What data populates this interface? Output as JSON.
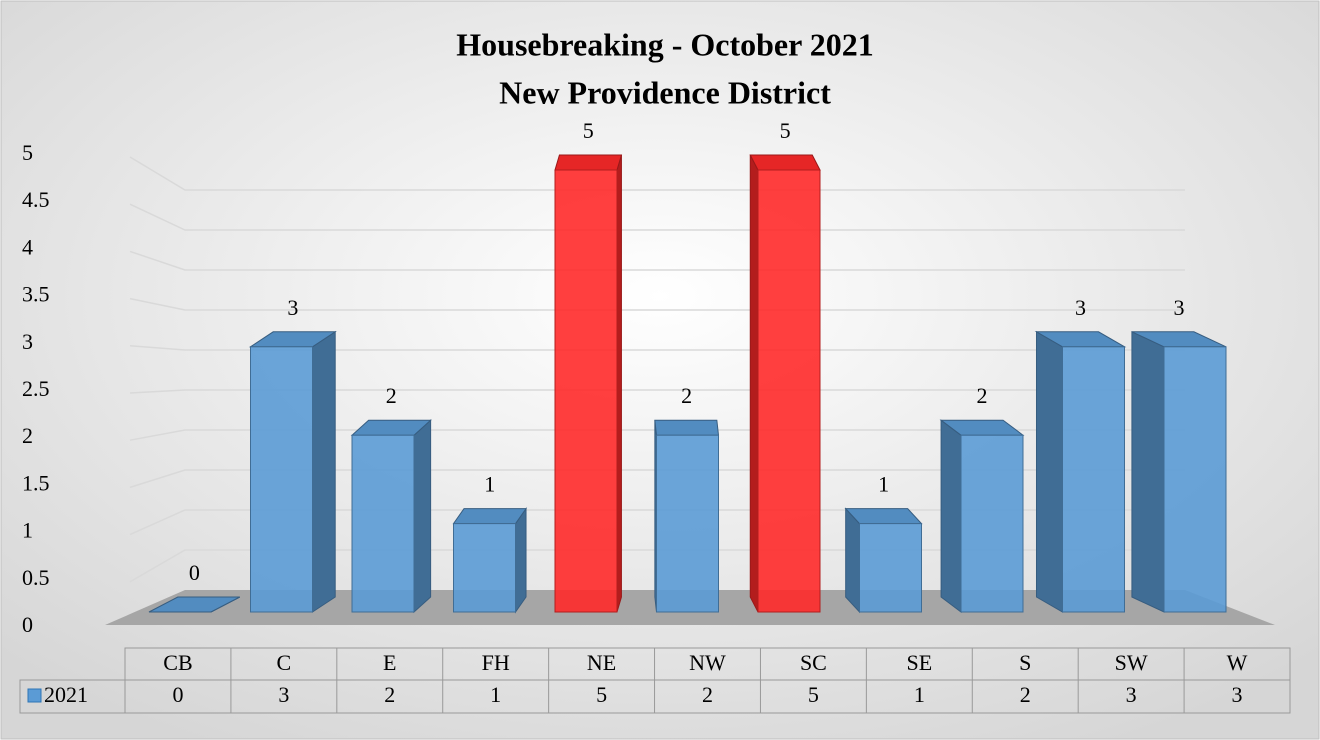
{
  "chart_data": {
    "type": "bar3d",
    "title": "Housebreaking - October 2021",
    "subtitle": "New Providence District",
    "categories": [
      "CB",
      "C",
      "E",
      "FH",
      "NE",
      "NW",
      "SC",
      "SE",
      "S",
      "SW",
      "W"
    ],
    "series": [
      {
        "name": "2021",
        "color": "#5b9bd5",
        "point_colors": [
          "#5b9bd5",
          "#5b9bd5",
          "#5b9bd5",
          "#5b9bd5",
          "#ff2a2a",
          "#5b9bd5",
          "#ff2a2a",
          "#5b9bd5",
          "#5b9bd5",
          "#5b9bd5",
          "#5b9bd5"
        ],
        "values": [
          0,
          3,
          2,
          1,
          5,
          2,
          5,
          1,
          2,
          3,
          3
        ]
      }
    ],
    "ylim": [
      0,
      5
    ],
    "yticks": [
      0,
      0.5,
      1,
      1.5,
      2,
      2.5,
      3,
      3.5,
      4,
      4.5,
      5
    ],
    "grid": true,
    "data_table": true
  }
}
